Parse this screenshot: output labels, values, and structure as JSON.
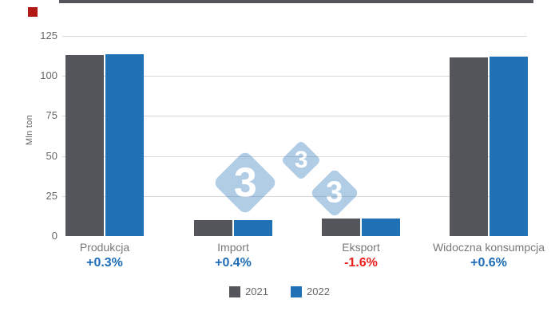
{
  "brand": {
    "mark_color": "#b01916",
    "watermark_digit": "3",
    "watermark_color": "#2372b9",
    "watermark_opacity": 0.35
  },
  "colors": {
    "grid": "#d8d8d8",
    "baseline": "#54565b",
    "tick_text": "#666666",
    "category_text": "#77787b",
    "positive_pct": "#1e6db6",
    "negative_pct": "#e8201e"
  },
  "chart_data": {
    "type": "bar",
    "title": "",
    "ylabel": "Mln ton",
    "ylim": [
      0,
      125
    ],
    "yticks": [
      0,
      25,
      50,
      75,
      100,
      125
    ],
    "grid": true,
    "legend_position": "bottom",
    "categories": [
      "Produkcja",
      "Import",
      "Eksport",
      "Widoczna konsumpcja"
    ],
    "series": [
      {
        "name": "2021",
        "color": "#54565b",
        "values": [
          113.0,
          10.0,
          11.0,
          111.6
        ]
      },
      {
        "name": "2022",
        "color": "#2071b5",
        "values": [
          113.3,
          10.05,
          10.8,
          112.3
        ]
      }
    ],
    "annotations": [
      {
        "text": "+0.3%",
        "color": "#1e6db6"
      },
      {
        "text": "+0.4%",
        "color": "#1e6db6"
      },
      {
        "text": "-1.6%",
        "color": "#e8201e"
      },
      {
        "text": "+0.6%",
        "color": "#1e6db6"
      }
    ]
  }
}
